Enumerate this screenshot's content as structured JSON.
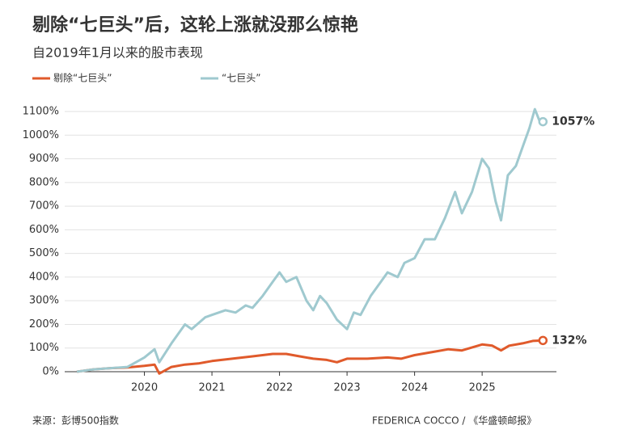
{
  "chart_data": {
    "type": "line",
    "title": "剔除“七巨头”后，这轮上涨就没那么惊艳",
    "subtitle": "自2019年1月以来的股市表现",
    "source": "来源：彭博500指数",
    "credit": "FEDERICA COCCO / 《华盛顿邮报》",
    "xlim": [
      2018.82,
      2026.1
    ],
    "xticks": [
      2020,
      2021,
      2022,
      2023,
      2024,
      2025
    ],
    "ylim": [
      0,
      1100
    ],
    "yticks": [
      {
        "value": 0,
        "label": "0%"
      },
      {
        "value": 100,
        "label": "100%"
      },
      {
        "value": 200,
        "label": "200%"
      },
      {
        "value": 300,
        "label": "300%"
      },
      {
        "value": 400,
        "label": "400%"
      },
      {
        "value": 500,
        "label": "500%"
      },
      {
        "value": 600,
        "label": "600%"
      },
      {
        "value": 700,
        "label": "700%"
      },
      {
        "value": 800,
        "label": "800%"
      },
      {
        "value": 900,
        "label": "900%"
      },
      {
        "value": 1000,
        "label": "1000%"
      },
      {
        "value": 1100,
        "label": "1100%"
      }
    ],
    "grid": true,
    "series": [
      {
        "name": "剔除“七巨头”",
        "color": "#e05a2b",
        "label_color": "#d9502a",
        "x": [
          2019.0,
          2019.25,
          2019.5,
          2019.75,
          2020.0,
          2020.15,
          2020.22,
          2020.4,
          2020.6,
          2020.8,
          2021.0,
          2021.3,
          2021.6,
          2021.9,
          2022.1,
          2022.3,
          2022.5,
          2022.7,
          2022.85,
          2023.0,
          2023.3,
          2023.6,
          2023.8,
          2024.0,
          2024.3,
          2024.5,
          2024.7,
          2025.0,
          2025.15,
          2025.28,
          2025.4,
          2025.6,
          2025.75,
          2025.9
        ],
        "values": [
          0,
          10,
          15,
          18,
          25,
          30,
          -8,
          20,
          30,
          35,
          45,
          55,
          65,
          75,
          75,
          65,
          55,
          50,
          40,
          55,
          55,
          60,
          55,
          70,
          85,
          95,
          90,
          115,
          110,
          90,
          110,
          120,
          130,
          132
        ],
        "value_labels": [
          null,
          null,
          null,
          null,
          null,
          null,
          null,
          null,
          null,
          null,
          null,
          null,
          null,
          null,
          null,
          null,
          null,
          null,
          null,
          null,
          null,
          null,
          null,
          null,
          null,
          null,
          null,
          null,
          null,
          null,
          null,
          null,
          null,
          "132%"
        ]
      },
      {
        "name": "“七巨头”",
        "color": "#9fc9cf",
        "label_color": "#5e8f95",
        "x": [
          2019.0,
          2019.25,
          2019.5,
          2019.75,
          2020.0,
          2020.15,
          2020.22,
          2020.4,
          2020.6,
          2020.7,
          2020.9,
          2021.0,
          2021.2,
          2021.35,
          2021.5,
          2021.6,
          2021.75,
          2021.9,
          2022.0,
          2022.1,
          2022.25,
          2022.4,
          2022.5,
          2022.6,
          2022.7,
          2022.85,
          2023.0,
          2023.1,
          2023.2,
          2023.35,
          2023.5,
          2023.6,
          2023.75,
          2023.85,
          2024.0,
          2024.15,
          2024.3,
          2024.45,
          2024.6,
          2024.7,
          2024.85,
          2025.0,
          2025.1,
          2025.2,
          2025.28,
          2025.38,
          2025.5,
          2025.6,
          2025.7,
          2025.78,
          2025.85,
          2025.9
        ],
        "values": [
          0,
          10,
          15,
          20,
          60,
          95,
          40,
          120,
          200,
          180,
          230,
          240,
          260,
          250,
          280,
          270,
          320,
          380,
          420,
          380,
          400,
          300,
          260,
          320,
          290,
          220,
          180,
          250,
          240,
          320,
          380,
          420,
          400,
          460,
          480,
          560,
          560,
          650,
          760,
          670,
          760,
          900,
          860,
          720,
          640,
          830,
          870,
          950,
          1030,
          1110,
          1060,
          1057
        ],
        "value_labels": [
          null,
          null,
          null,
          null,
          null,
          null,
          null,
          null,
          null,
          null,
          null,
          null,
          null,
          null,
          null,
          null,
          null,
          null,
          null,
          null,
          null,
          null,
          null,
          null,
          null,
          null,
          null,
          null,
          null,
          null,
          null,
          null,
          null,
          null,
          null,
          null,
          null,
          null,
          null,
          null,
          null,
          null,
          null,
          null,
          null,
          null,
          null,
          null,
          null,
          null,
          null,
          "1057%"
        ]
      }
    ]
  }
}
